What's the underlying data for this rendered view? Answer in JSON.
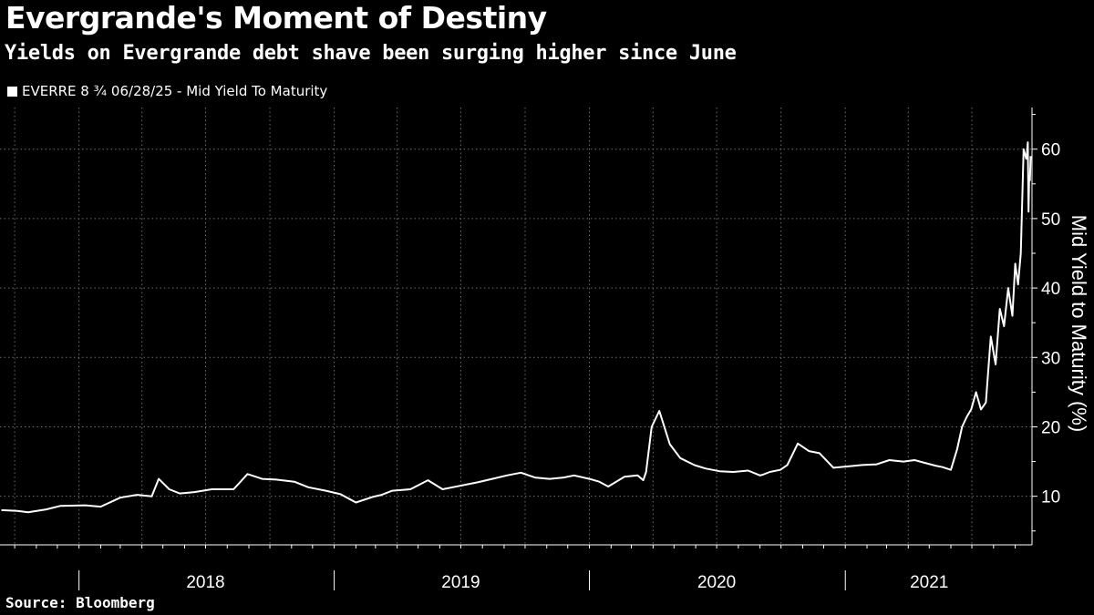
{
  "title": "Evergrande's Moment of Destiny",
  "subtitle": "Yields on Evergrande debt shave been surging higher since June",
  "source": "Source: Bloomberg",
  "colors": {
    "background": "#000000",
    "line": "#ffffff",
    "grid": "#6e6e6e"
  },
  "chart_data": {
    "type": "line",
    "title": "Evergrande's Moment of Destiny",
    "subtitle": "Yields on Evergrande debt shave been surging higher since June",
    "ylabel": "Mid Yield to Maturity (%)",
    "xlabel": "",
    "ylim": [
      3,
      66
    ],
    "yticks": [
      10,
      20,
      30,
      40,
      50,
      60
    ],
    "xlim": [
      "2017-09-10",
      "2021-09-25"
    ],
    "year_labels": [
      {
        "label": "2018",
        "mid": "2018-07-01"
      },
      {
        "label": "2019",
        "mid": "2019-07-01"
      },
      {
        "label": "2020",
        "mid": "2020-07-01"
      },
      {
        "label": "2021",
        "mid": "2021-05-01"
      }
    ],
    "year_starts": [
      "2018-01-01",
      "2019-01-01",
      "2020-01-01",
      "2021-01-01"
    ],
    "grid": true,
    "legend": "top-left",
    "series": [
      {
        "name": "EVERRE 8 ¾ 06/28/25 - Mid Yield To Maturity",
        "x": [
          "2017-09-12",
          "2017-10-05",
          "2017-10-20",
          "2017-11-15",
          "2017-12-05",
          "2018-01-10",
          "2018-02-01",
          "2018-03-01",
          "2018-03-25",
          "2018-04-15",
          "2018-04-25",
          "2018-05-10",
          "2018-05-25",
          "2018-06-15",
          "2018-07-10",
          "2018-08-10",
          "2018-08-30",
          "2018-09-20",
          "2018-10-10",
          "2018-11-05",
          "2018-11-25",
          "2018-12-20",
          "2019-01-10",
          "2019-02-01",
          "2019-02-25",
          "2019-03-10",
          "2019-03-25",
          "2019-04-20",
          "2019-05-15",
          "2019-06-05",
          "2019-06-30",
          "2019-07-25",
          "2019-08-15",
          "2019-09-05",
          "2019-09-25",
          "2019-10-15",
          "2019-11-05",
          "2019-11-25",
          "2019-12-10",
          "2020-01-01",
          "2020-01-15",
          "2020-01-28",
          "2020-02-20",
          "2020-03-10",
          "2020-03-18",
          "2020-03-22",
          "2020-03-30",
          "2020-04-10",
          "2020-04-25",
          "2020-05-10",
          "2020-05-30",
          "2020-06-15",
          "2020-07-05",
          "2020-07-25",
          "2020-08-15",
          "2020-09-01",
          "2020-09-05",
          "2020-09-15",
          "2020-09-30",
          "2020-10-10",
          "2020-10-25",
          "2020-11-10",
          "2020-11-25",
          "2020-12-15",
          "2021-01-05",
          "2021-01-25",
          "2021-02-15",
          "2021-03-05",
          "2021-03-25",
          "2021-04-10",
          "2021-04-25",
          "2021-05-10",
          "2021-05-20",
          "2021-06-01",
          "2021-06-10",
          "2021-06-17",
          "2021-06-24",
          "2021-06-30",
          "2021-07-07",
          "2021-07-14",
          "2021-07-21",
          "2021-07-28",
          "2021-08-04",
          "2021-08-10",
          "2021-08-16",
          "2021-08-22",
          "2021-08-28",
          "2021-09-01",
          "2021-09-05",
          "2021-09-09",
          "2021-09-13",
          "2021-09-17"
        ],
        "y": [
          8.0,
          7.9,
          7.7,
          8.1,
          8.6,
          8.7,
          8.5,
          9.8,
          10.2,
          10.0,
          12.5,
          11.0,
          10.4,
          10.6,
          11.0,
          11.0,
          13.2,
          12.5,
          12.4,
          12.1,
          11.3,
          10.8,
          10.3,
          9.1,
          9.9,
          10.2,
          10.8,
          11.0,
          12.3,
          11.0,
          11.5,
          12.0,
          12.5,
          13.0,
          13.4,
          12.7,
          12.5,
          12.7,
          13.0,
          12.5,
          12.1,
          11.4,
          12.8,
          13.0,
          12.3,
          13.5,
          20.0,
          22.3,
          17.5,
          15.5,
          14.5,
          14.0,
          13.6,
          13.5,
          13.7,
          13.0,
          13.1,
          13.5,
          13.8,
          14.5,
          17.6,
          16.5,
          16.2,
          14.1,
          14.3,
          14.5,
          14.6,
          15.2,
          15.0,
          15.2,
          14.8,
          14.4,
          14.2,
          13.8,
          16.8,
          20.0,
          21.5,
          22.5,
          25.0,
          22.5,
          23.5,
          33.0,
          29.0,
          37.0,
          34.5,
          40.0,
          36.0,
          43.5,
          40.5,
          45.0,
          60.0,
          58.5
        ]
      },
      {
        "name": "",
        "x": [
          "2021-09-17",
          "2021-09-19",
          "2021-09-20",
          "2021-09-21",
          "2021-09-22",
          "2021-09-23"
        ],
        "y": [
          58.5,
          61.0,
          51.0,
          56.0,
          55.5,
          59.0
        ]
      }
    ]
  }
}
